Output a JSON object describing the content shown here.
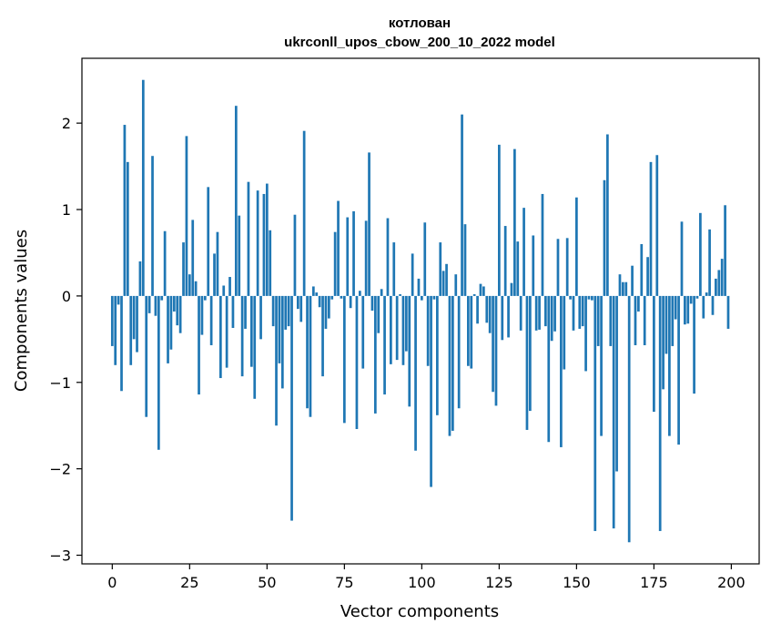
{
  "chart_data": {
    "type": "bar",
    "title": "котлован",
    "subtitle": "ukrconll_upos_cbow_200_10_2022 model",
    "xlabel": "Vector components",
    "ylabel": "Components values",
    "xlim": [
      -9.8,
      209
    ],
    "ylim": [
      -3.1,
      2.75
    ],
    "xticks": [
      0,
      25,
      50,
      75,
      100,
      125,
      150,
      175,
      200
    ],
    "yticks": [
      -3,
      -2,
      -1,
      0,
      1,
      2
    ],
    "grid": false,
    "bar_color": "#1f77b4",
    "values": [
      -0.58,
      -0.8,
      -0.1,
      -1.1,
      1.98,
      1.55,
      -0.8,
      -0.5,
      -0.65,
      0.4,
      2.5,
      -1.4,
      -0.2,
      1.62,
      -0.23,
      -1.78,
      -0.05,
      0.75,
      -0.78,
      -0.62,
      -0.18,
      -0.34,
      -0.43,
      0.62,
      1.85,
      0.25,
      0.88,
      0.17,
      -1.14,
      -0.45,
      -0.05,
      1.26,
      -0.57,
      0.49,
      0.74,
      -0.95,
      0.12,
      -0.83,
      0.22,
      -0.37,
      2.2,
      0.93,
      -0.93,
      -0.38,
      1.32,
      -0.82,
      -1.19,
      1.22,
      -0.5,
      1.18,
      1.3,
      0.76,
      -0.35,
      -1.5,
      -0.78,
      -1.07,
      -0.39,
      -0.35,
      -2.6,
      0.94,
      -0.15,
      -0.3,
      1.91,
      -1.3,
      -1.4,
      0.11,
      0.04,
      -0.13,
      -0.93,
      -0.38,
      -0.26,
      -0.04,
      0.74,
      1.1,
      -0.03,
      -1.47,
      0.91,
      -0.14,
      0.98,
      -1.54,
      0.06,
      -0.84,
      0.87,
      1.66,
      -0.17,
      -1.36,
      -0.43,
      0.08,
      -1.14,
      0.9,
      -0.79,
      0.62,
      -0.74,
      0.02,
      -0.8,
      -0.64,
      -1.28,
      0.49,
      -1.79,
      0.2,
      -0.05,
      0.85,
      -0.81,
      -2.21,
      -0.04,
      -1.38,
      0.62,
      0.29,
      0.37,
      -1.62,
      -1.56,
      0.25,
      -1.3,
      2.1,
      0.83,
      -0.81,
      -0.84,
      0.02,
      -0.32,
      0.14,
      0.11,
      -0.31,
      -0.43,
      -1.11,
      -1.27,
      1.75,
      -0.51,
      0.81,
      -0.48,
      0.15,
      1.7,
      0.63,
      -0.4,
      1.02,
      -1.55,
      -1.33,
      0.7,
      -0.4,
      -0.39,
      1.18,
      -0.35,
      -1.69,
      -0.52,
      -0.41,
      0.66,
      -1.75,
      -0.85,
      0.67,
      -0.04,
      -0.4,
      1.14,
      -0.38,
      -0.35,
      -0.87,
      -0.04,
      -0.05,
      -2.72,
      -0.58,
      -1.62,
      1.34,
      1.87,
      -0.58,
      -2.69,
      -2.03,
      0.25,
      0.16,
      0.16,
      -2.85,
      0.35,
      -0.57,
      -0.18,
      0.6,
      -0.57,
      0.45,
      1.55,
      -1.34,
      1.63,
      -2.72,
      -1.08,
      -0.67,
      -1.62,
      -0.58,
      -0.27,
      -1.72,
      0.86,
      -0.33,
      -0.32,
      -0.09,
      -1.13,
      -0.03,
      0.96,
      -0.26,
      0.04,
      0.77,
      -0.22,
      0.2,
      0.3,
      0.43,
      1.05,
      -0.38
    ]
  }
}
